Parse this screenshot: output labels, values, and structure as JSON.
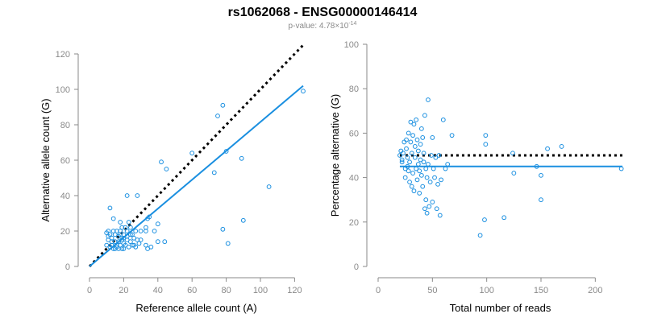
{
  "title": "rs1062068 - ENSG00000146414",
  "subtitle": {
    "prefix": "p-value: 4.78×10",
    "exponent": "-14"
  },
  "colors": {
    "points": "#1a8fe0",
    "fit_line": "#1a8fe0",
    "reference_line": "#000000",
    "axes": "#8a8a8a"
  },
  "chart_data": [
    {
      "type": "scatter",
      "xlabel": "Reference allele count (A)",
      "ylabel": "Alternative allele count (G)",
      "xlim": [
        0,
        125
      ],
      "ylim": [
        0,
        120
      ],
      "xticks": [
        0,
        20,
        40,
        60,
        80,
        100,
        120
      ],
      "yticks": [
        0,
        20,
        40,
        60,
        80,
        100,
        120
      ],
      "grid": false,
      "reference_line": {
        "style": "dotted",
        "x": [
          0,
          125
        ],
        "y": [
          0,
          125
        ]
      },
      "fit_line": {
        "style": "solid",
        "x": [
          0,
          125
        ],
        "y": [
          0,
          102
        ]
      },
      "points": [
        [
          10,
          19
        ],
        [
          11,
          20
        ],
        [
          12,
          18
        ],
        [
          11,
          15
        ],
        [
          10,
          12
        ],
        [
          12,
          11
        ],
        [
          14,
          10
        ],
        [
          13,
          16
        ],
        [
          15,
          14
        ],
        [
          16,
          12
        ],
        [
          17,
          10
        ],
        [
          18,
          12
        ],
        [
          19,
          15
        ],
        [
          20,
          18
        ],
        [
          20,
          13
        ],
        [
          22,
          15
        ],
        [
          21,
          12
        ],
        [
          19,
          10
        ],
        [
          23,
          11
        ],
        [
          25,
          12
        ],
        [
          24,
          18
        ],
        [
          22,
          20
        ],
        [
          18,
          25
        ],
        [
          14,
          27
        ],
        [
          12,
          33
        ],
        [
          16,
          20
        ],
        [
          17,
          17
        ],
        [
          13,
          14
        ],
        [
          15,
          18
        ],
        [
          14,
          20
        ],
        [
          18,
          20
        ],
        [
          19,
          22
        ],
        [
          21,
          22
        ],
        [
          25,
          18
        ],
        [
          27,
          20
        ],
        [
          28,
          15
        ],
        [
          30,
          20
        ],
        [
          33,
          22
        ],
        [
          34,
          27
        ],
        [
          35,
          28
        ],
        [
          33,
          12
        ],
        [
          34,
          10
        ],
        [
          36,
          11
        ],
        [
          38,
          20
        ],
        [
          40,
          14
        ],
        [
          44,
          14
        ],
        [
          40,
          24
        ],
        [
          33,
          20
        ],
        [
          30,
          15
        ],
        [
          26,
          12
        ],
        [
          22,
          40
        ],
        [
          28,
          40
        ],
        [
          42,
          59
        ],
        [
          45,
          55
        ],
        [
          60,
          64
        ],
        [
          73,
          53
        ],
        [
          75,
          85
        ],
        [
          78,
          91
        ],
        [
          80,
          65
        ],
        [
          78,
          21
        ],
        [
          81,
          13
        ],
        [
          89,
          61
        ],
        [
          90,
          26
        ],
        [
          105,
          45
        ],
        [
          125,
          99
        ],
        [
          24,
          14
        ],
        [
          20,
          10
        ],
        [
          16,
          11
        ],
        [
          13,
          12
        ],
        [
          11,
          17
        ],
        [
          23,
          25
        ],
        [
          17,
          14
        ],
        [
          15,
          10
        ],
        [
          18,
          18
        ],
        [
          26,
          16
        ],
        [
          29,
          13
        ],
        [
          22,
          17
        ],
        [
          20,
          16
        ],
        [
          24,
          22
        ],
        [
          27,
          11
        ]
      ]
    },
    {
      "type": "scatter",
      "xlabel": "Total number of reads",
      "ylabel": "Percentage alternative (G)",
      "xlim": [
        0,
        225
      ],
      "ylim": [
        0,
        100
      ],
      "xticks": [
        0,
        50,
        100,
        150,
        200
      ],
      "yticks": [
        0,
        20,
        40,
        60,
        80,
        100
      ],
      "grid": false,
      "reference_line": {
        "style": "dotted",
        "x": [
          20,
          225
        ],
        "y": [
          50,
          50
        ]
      },
      "fit_line": {
        "style": "solid",
        "x": [
          20,
          225
        ],
        "y": [
          45,
          45
        ]
      },
      "points": [
        [
          20,
          50
        ],
        [
          21,
          52
        ],
        [
          22,
          48
        ],
        [
          23,
          51
        ],
        [
          22,
          47
        ],
        [
          24,
          56
        ],
        [
          25,
          44
        ],
        [
          25,
          40
        ],
        [
          26,
          57
        ],
        [
          26,
          53
        ],
        [
          27,
          49
        ],
        [
          27,
          45
        ],
        [
          28,
          43
        ],
        [
          28,
          60
        ],
        [
          29,
          38
        ],
        [
          29,
          47
        ],
        [
          30,
          56
        ],
        [
          30,
          65
        ],
        [
          31,
          51
        ],
        [
          31,
          36
        ],
        [
          32,
          59
        ],
        [
          32,
          42
        ],
        [
          33,
          64
        ],
        [
          33,
          34
        ],
        [
          34,
          54
        ],
        [
          34,
          49
        ],
        [
          35,
          44
        ],
        [
          35,
          66
        ],
        [
          36,
          39
        ],
        [
          36,
          57
        ],
        [
          37,
          46
        ],
        [
          37,
          52
        ],
        [
          38,
          43
        ],
        [
          38,
          33
        ],
        [
          39,
          55
        ],
        [
          39,
          48
        ],
        [
          40,
          41
        ],
        [
          40,
          62
        ],
        [
          41,
          36
        ],
        [
          41,
          58
        ],
        [
          42,
          47
        ],
        [
          42,
          51
        ],
        [
          43,
          68
        ],
        [
          43,
          26
        ],
        [
          44,
          44
        ],
        [
          44,
          30
        ],
        [
          45,
          24
        ],
        [
          45,
          40
        ],
        [
          46,
          75
        ],
        [
          46,
          46
        ],
        [
          47,
          27
        ],
        [
          48,
          38
        ],
        [
          49,
          50
        ],
        [
          50,
          29
        ],
        [
          50,
          58
        ],
        [
          51,
          44
        ],
        [
          52,
          40
        ],
        [
          53,
          49
        ],
        [
          54,
          26
        ],
        [
          55,
          37
        ],
        [
          56,
          50
        ],
        [
          57,
          23
        ],
        [
          58,
          39
        ],
        [
          60,
          66
        ],
        [
          62,
          44
        ],
        [
          64,
          46
        ],
        [
          68,
          59
        ],
        [
          94,
          14
        ],
        [
          98,
          21
        ],
        [
          99,
          59
        ],
        [
          99,
          55
        ],
        [
          116,
          22
        ],
        [
          124,
          51
        ],
        [
          125,
          42
        ],
        [
          146,
          45
        ],
        [
          150,
          30
        ],
        [
          150,
          41
        ],
        [
          156,
          53
        ],
        [
          169,
          54
        ],
        [
          224,
          44
        ]
      ]
    }
  ]
}
